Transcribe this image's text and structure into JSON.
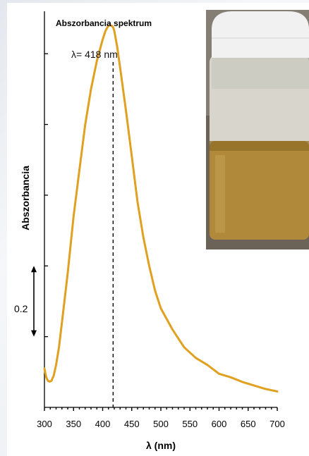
{
  "chart_data": {
    "type": "line",
    "title": "Abszorbancia spektrum",
    "xlabel": "λ (nm)",
    "ylabel": "Abszorbancia",
    "xlim": [
      300,
      700
    ],
    "x_ticks": [
      300,
      350,
      400,
      450,
      500,
      550,
      600,
      650,
      700
    ],
    "x_tick_labels": [
      "300",
      "350",
      "400",
      "450",
      "500",
      "550",
      "600",
      "650",
      "700"
    ],
    "ylim": [
      0,
      1.12
    ],
    "y_ticks_shown": false,
    "scale_bar": {
      "label": "0.2",
      "from": 0.2,
      "to": 0.4
    },
    "peak": {
      "x": 418,
      "label": "λ= 418 nm"
    },
    "line_color": "#e0a020",
    "series": [
      {
        "x": [
          300,
          303,
          306,
          309,
          312,
          316,
          320,
          325,
          330,
          340,
          350,
          360,
          370,
          380,
          390,
          400,
          405,
          410,
          415,
          418,
          420,
          425,
          430,
          440,
          450,
          460,
          470,
          480,
          490,
          500,
          520,
          540,
          560,
          580,
          600,
          620,
          640,
          660,
          680,
          700
        ],
        "y": [
          0.11,
          0.085,
          0.075,
          0.073,
          0.075,
          0.09,
          0.12,
          0.17,
          0.24,
          0.38,
          0.54,
          0.67,
          0.8,
          0.9,
          0.98,
          1.04,
          1.065,
          1.08,
          1.08,
          1.075,
          1.065,
          1.02,
          0.96,
          0.84,
          0.71,
          0.58,
          0.48,
          0.4,
          0.33,
          0.28,
          0.22,
          0.17,
          0.14,
          0.12,
          0.095,
          0.085,
          0.072,
          0.062,
          0.052,
          0.045
        ]
      }
    ]
  },
  "photo": {
    "cap_color": "#f1f1f1",
    "glass_color": "#d8d6cc",
    "liquid_color": "#b08a3a",
    "background_color": "#6b6358"
  }
}
